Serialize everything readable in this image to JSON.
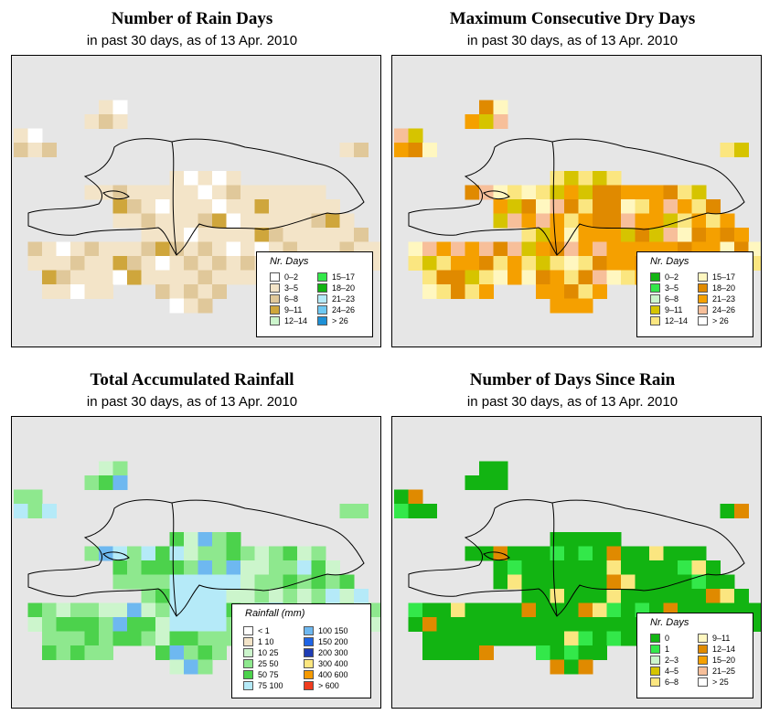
{
  "panels": [
    {
      "title": "Number of Rain Days",
      "subtitle": "in past 30 days, as of  13 Apr. 2010",
      "legend_title": "Nr. Days",
      "legend": [
        {
          "label": "0–2",
          "color": "#ffffff"
        },
        {
          "label": "3–5",
          "color": "#f3e4c8"
        },
        {
          "label": "6–8",
          "color": "#e0c89a"
        },
        {
          "label": "9–11",
          "color": "#cfa63c"
        },
        {
          "label": "12–14",
          "color": "#ccf5cc"
        },
        {
          "label": "15–17",
          "color": "#33e84a"
        },
        {
          "label": "18–20",
          "color": "#12b412"
        },
        {
          "label": "21–23",
          "color": "#b5eaf8"
        },
        {
          "label": "24–26",
          "color": "#6ec8f2"
        },
        {
          "label": "> 26",
          "color": "#1e90d6"
        }
      ]
    },
    {
      "title": "Maximum Consecutive Dry Days",
      "subtitle": "in past 30 days, as of  13 Apr. 2010",
      "legend_title": "Nr. Days",
      "legend": [
        {
          "label": "0–2",
          "color": "#12b412"
        },
        {
          "label": "3–5",
          "color": "#33e84a"
        },
        {
          "label": "6–8",
          "color": "#ccf5cc"
        },
        {
          "label": "9–11",
          "color": "#d6c400"
        },
        {
          "label": "12–14",
          "color": "#fbe680"
        },
        {
          "label": "15–17",
          "color": "#fff7c0"
        },
        {
          "label": "18–20",
          "color": "#e08a00"
        },
        {
          "label": "21–23",
          "color": "#f5a000"
        },
        {
          "label": "24–26",
          "color": "#f7bf9a"
        },
        {
          "label": "> 26",
          "color": "#ffffff"
        }
      ]
    },
    {
      "title": "Total Accumulated Rainfall",
      "subtitle": "in past 30 days, as of  13 Apr. 2010",
      "legend_title": "Rainfall (mm)",
      "legend": [
        {
          "label": "< 1",
          "color": "#ffffff"
        },
        {
          "label": "1    10",
          "color": "#f3e4c8"
        },
        {
          "label": "10   25",
          "color": "#ccf5cc"
        },
        {
          "label": "25   50",
          "color": "#8ee88e"
        },
        {
          "label": "50   75",
          "color": "#4cd24c"
        },
        {
          "label": "75  100",
          "color": "#b5eaf8"
        },
        {
          "label": "100  150",
          "color": "#6eb8f0"
        },
        {
          "label": "150  200",
          "color": "#1e64e6"
        },
        {
          "label": "200  300",
          "color": "#1e3cb4"
        },
        {
          "label": "300  400",
          "color": "#fbe680"
        },
        {
          "label": "400  600",
          "color": "#f59a00"
        },
        {
          "label": "> 600",
          "color": "#f03c1e"
        }
      ]
    },
    {
      "title": "Number of Days Since Rain",
      "subtitle": "in past 30 days, as of  13 Apr. 2010",
      "legend_title": "Nr. Days",
      "legend": [
        {
          "label": "0",
          "color": "#12b412"
        },
        {
          "label": "1",
          "color": "#33e84a"
        },
        {
          "label": "2–3",
          "color": "#ccf5cc"
        },
        {
          "label": "4–5",
          "color": "#d6c400"
        },
        {
          "label": "6–8",
          "color": "#fbe680"
        },
        {
          "label": "9–11",
          "color": "#fff7c0"
        },
        {
          "label": "12–14",
          "color": "#e08a00"
        },
        {
          "label": "15–20",
          "color": "#f5a000"
        },
        {
          "label": "21–25",
          "color": "#f7bf9a"
        },
        {
          "label": "> 25",
          "color": "#ffffff"
        }
      ]
    }
  ],
  "colors": {
    "map_background": "#e6e6e6",
    "coast": "#000000"
  }
}
